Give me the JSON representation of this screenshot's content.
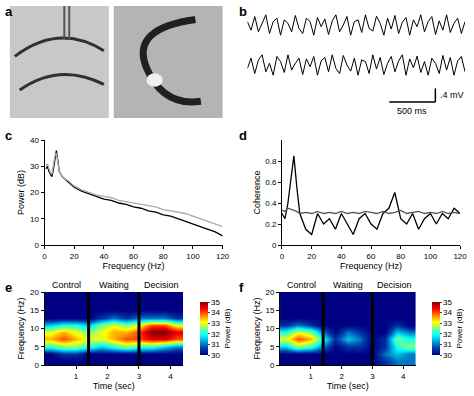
{
  "chart_data": [
    {
      "type": "image",
      "title": "a"
    },
    {
      "type": "line",
      "title": "b",
      "tick_labels": false,
      "xlim": [
        0,
        2360
      ],
      "ylim": [
        -0.5,
        0.5
      ],
      "x": [
        0,
        40,
        80,
        120,
        160,
        200,
        240,
        280,
        320,
        360,
        400,
        440,
        480,
        520,
        560,
        600,
        640,
        680,
        720,
        760,
        800,
        840,
        880,
        920,
        960,
        1000,
        1040,
        1080,
        1120,
        1160,
        1200,
        1240,
        1280,
        1320,
        1360,
        1400,
        1440,
        1480,
        1520,
        1560,
        1600,
        1640,
        1680,
        1720,
        1760,
        1800,
        1840,
        1880,
        1920,
        1960,
        2000,
        2040,
        2080,
        2120,
        2160,
        2200,
        2240,
        2280,
        2320,
        2360
      ],
      "series": [
        {
          "color": "#000000",
          "values": [
            0.1,
            -0.15,
            0.25,
            -0.2,
            0.05,
            0.3,
            -0.25,
            0.1,
            0.2,
            -0.3,
            0.15,
            0.05,
            -0.2,
            0.28,
            -0.1,
            -0.25,
            0.2,
            0.1,
            -0.3,
            0.22,
            -0.05,
            0.18,
            -0.28,
            0.12,
            0.3,
            -0.2,
            0.0,
            0.25,
            -0.3,
            0.1,
            0.15,
            -0.22,
            0.3,
            -0.1,
            -0.18,
            0.26,
            0.05,
            -0.3,
            0.2,
            -0.12,
            0.28,
            -0.25,
            0.08,
            0.22,
            -0.3,
            0.15,
            -0.05,
            0.3,
            -0.2,
            0.1,
            0.25,
            -0.28,
            0.12,
            -0.15,
            0.3,
            -0.22,
            0.05,
            0.2,
            -0.25,
            0.1
          ]
        },
        {
          "color": "#000000",
          "values": [
            -0.1,
            0.2,
            -0.25,
            0.15,
            0.3,
            -0.2,
            0.05,
            -0.3,
            0.25,
            0.1,
            -0.22,
            0.3,
            -0.15,
            0.05,
            0.2,
            -0.28,
            0.18,
            -0.05,
            0.25,
            -0.3,
            0.12,
            0.22,
            -0.2,
            0.3,
            -0.1,
            -0.25,
            0.28,
            0.0,
            -0.18,
            0.2,
            -0.3,
            0.15,
            0.1,
            -0.25,
            0.3,
            -0.12,
            0.22,
            -0.28,
            0.05,
            0.25,
            -0.2,
            0.12,
            0.3,
            -0.3,
            0.18,
            -0.08,
            0.26,
            -0.22,
            0.1,
            -0.3,
            0.2,
            0.05,
            -0.25,
            0.28,
            -0.15,
            0.22,
            -0.3,
            0.12,
            0.25,
            -0.2
          ]
        }
      ],
      "scale_bar": {
        "x": 500,
        "y": 0.4,
        "x_label": "500 ms",
        "y_label": ".4 mV"
      }
    },
    {
      "type": "line",
      "title": "c",
      "x_label": "Frequency (Hz)",
      "y_label": "Power (dB)",
      "xlim": [
        0,
        120
      ],
      "xticks": [
        0,
        20,
        40,
        60,
        80,
        100,
        120
      ],
      "ylim": [
        0,
        40
      ],
      "yticks": [
        0,
        10,
        20,
        30,
        40
      ],
      "x": [
        1,
        2,
        3,
        4,
        5,
        6,
        7,
        8,
        9,
        10,
        12,
        14,
        16,
        18,
        20,
        25,
        30,
        35,
        40,
        45,
        50,
        55,
        60,
        65,
        70,
        75,
        80,
        85,
        90,
        95,
        100,
        105,
        110,
        115,
        120
      ],
      "series": [
        {
          "color": "#000000",
          "values": [
            29,
            30,
            28,
            27,
            26,
            29,
            33,
            36,
            32,
            28,
            26,
            25,
            24,
            23,
            22,
            20.5,
            19.5,
            18.5,
            17.5,
            17,
            16,
            15.5,
            14.5,
            14,
            13,
            12.5,
            11.5,
            11,
            10,
            9,
            8,
            7,
            6,
            5,
            3.5
          ]
        },
        {
          "color": "#aaaaaa",
          "values": [
            30,
            31,
            29,
            27.5,
            27,
            30,
            34,
            35,
            31,
            28,
            26,
            25,
            24.5,
            23.5,
            22.5,
            21,
            20,
            19,
            18.5,
            18,
            17,
            16.5,
            16,
            15.5,
            15,
            14.5,
            13.5,
            13,
            12.5,
            12,
            11,
            10,
            9,
            8,
            7
          ]
        }
      ]
    },
    {
      "type": "line",
      "title": "d",
      "x_label": "Frequency (Hz)",
      "y_label": "Coherence",
      "xlim": [
        0,
        120
      ],
      "xticks": [
        0,
        20,
        40,
        60,
        80,
        100,
        120
      ],
      "ylim": [
        0,
        1
      ],
      "yticks": [
        0,
        0.2,
        0.4,
        0.6,
        0.8
      ],
      "x": [
        0,
        2,
        4,
        6,
        8,
        10,
        12,
        16,
        20,
        24,
        28,
        32,
        36,
        40,
        44,
        48,
        52,
        56,
        60,
        64,
        68,
        72,
        76,
        80,
        84,
        88,
        92,
        96,
        100,
        104,
        108,
        112,
        116,
        120
      ],
      "series": [
        {
          "color": "#000000",
          "values": [
            0.3,
            0.25,
            0.4,
            0.6,
            0.85,
            0.55,
            0.3,
            0.15,
            0.1,
            0.3,
            0.2,
            0.25,
            0.15,
            0.3,
            0.2,
            0.1,
            0.25,
            0.3,
            0.2,
            0.15,
            0.3,
            0.35,
            0.5,
            0.25,
            0.2,
            0.3,
            0.15,
            0.25,
            0.3,
            0.2,
            0.3,
            0.25,
            0.35,
            0.3
          ]
        },
        {
          "color": "#555555",
          "values": [
            0.33,
            0.32,
            0.35,
            0.34,
            0.33,
            0.32,
            0.3,
            0.31,
            0.3,
            0.32,
            0.3,
            0.31,
            0.3,
            0.32,
            0.3,
            0.31,
            0.3,
            0.32,
            0.31,
            0.3,
            0.32,
            0.3,
            0.31,
            0.33,
            0.3,
            0.31,
            0.32,
            0.3,
            0.31,
            0.3,
            0.32,
            0.3,
            0.31,
            0.3
          ]
        }
      ]
    },
    {
      "type": "heatmap",
      "title": "e",
      "x_label": "Time (sec)",
      "y_label": "Frequency (Hz)",
      "xlim": [
        0,
        4.4
      ],
      "xticks": [
        1,
        2,
        3,
        4
      ],
      "ylim": [
        0,
        20
      ],
      "yticks": [
        0,
        5,
        10,
        15,
        20
      ],
      "x": [
        0.2,
        0.6,
        1.0,
        1.4,
        1.8,
        2.2,
        2.6,
        3.0,
        3.4,
        3.8,
        4.2
      ],
      "y": [
        1,
        3,
        5,
        7,
        9,
        11,
        13,
        15,
        17,
        19
      ],
      "z": [
        [
          30,
          30,
          30,
          30,
          30,
          30,
          30,
          30,
          30,
          30,
          30
        ],
        [
          30,
          30.5,
          30.5,
          30,
          30,
          30,
          30,
          30,
          30,
          30,
          30
        ],
        [
          32,
          32.5,
          32.5,
          32,
          31.5,
          32,
          32.5,
          32,
          32,
          31.5,
          31
        ],
        [
          33.5,
          34,
          33.5,
          33,
          33,
          33.5,
          34,
          34,
          34.5,
          34.5,
          34
        ],
        [
          33,
          33.5,
          33,
          32.5,
          33,
          33.5,
          33.5,
          34,
          35,
          35,
          34.5
        ],
        [
          31.5,
          32,
          32,
          31.5,
          32.5,
          33,
          32.5,
          33,
          34,
          34,
          33
        ],
        [
          30,
          30,
          30,
          30,
          30.5,
          31,
          30.5,
          31,
          31,
          31,
          30.5
        ],
        [
          30,
          30,
          30,
          30,
          30,
          30,
          30,
          30,
          30,
          30,
          30
        ],
        [
          30,
          30,
          30,
          30,
          30,
          30,
          30,
          30,
          30,
          30,
          30
        ],
        [
          30,
          30,
          30,
          30,
          30,
          30,
          30,
          30,
          30,
          30,
          30
        ]
      ],
      "zlim": [
        30,
        35
      ],
      "zticks": [
        30,
        31,
        32,
        33,
        34,
        35
      ],
      "colorbar_title": "Power (dB)",
      "events": [
        1.4,
        3.0
      ],
      "annotations": [
        {
          "text": "Control",
          "x": 0.7
        },
        {
          "text": "Waiting",
          "x": 2.2
        },
        {
          "text": "Decision",
          "x": 3.7
        }
      ]
    },
    {
      "type": "heatmap",
      "title": "f",
      "x_label": "Time (sec)",
      "y_label": "Frequency (Hz)",
      "xlim": [
        0,
        4.4
      ],
      "xticks": [
        1,
        2,
        3,
        4
      ],
      "ylim": [
        0,
        20
      ],
      "yticks": [
        0,
        5,
        10,
        15,
        20
      ],
      "x": [
        0.2,
        0.6,
        1.0,
        1.4,
        1.8,
        2.2,
        2.6,
        3.0,
        3.4,
        3.8,
        4.2
      ],
      "y": [
        1,
        3,
        5,
        7,
        9,
        11,
        13,
        15,
        17,
        19
      ],
      "z": [
        [
          30,
          30,
          30,
          30,
          30,
          30,
          30,
          30,
          30.5,
          31,
          31
        ],
        [
          30,
          30,
          30,
          30,
          30,
          30,
          30,
          30,
          31,
          31.5,
          31
        ],
        [
          31.5,
          32.5,
          32,
          31,
          30,
          30.5,
          30.5,
          30,
          30.5,
          32,
          32.5
        ],
        [
          33,
          34,
          33.5,
          32,
          30.5,
          31.5,
          31,
          30,
          30.5,
          32.5,
          32
        ],
        [
          32,
          33,
          32.5,
          31,
          30,
          31,
          30.5,
          30,
          30,
          31.5,
          31
        ],
        [
          30.5,
          31,
          30.5,
          30,
          30,
          30,
          30,
          30,
          30,
          30.5,
          30
        ],
        [
          30,
          30,
          30,
          30,
          30,
          30,
          30,
          30,
          30,
          30,
          30
        ],
        [
          30,
          30,
          30,
          30,
          30,
          30,
          30,
          30,
          30,
          30,
          30
        ],
        [
          30,
          30,
          30,
          30,
          30,
          30,
          30,
          30,
          30,
          30,
          30
        ],
        [
          30,
          30,
          30,
          30,
          30,
          30,
          30,
          30,
          30,
          30,
          30
        ]
      ],
      "zlim": [
        30,
        35
      ],
      "zticks": [
        30,
        31,
        32,
        33,
        34,
        35
      ],
      "colorbar_title": "Power (dB)",
      "events": [
        1.4,
        3.0
      ],
      "annotations": [
        {
          "text": "Control",
          "x": 0.7
        },
        {
          "text": "Waiting",
          "x": 2.2
        },
        {
          "text": "Decision",
          "x": 3.7
        }
      ]
    }
  ]
}
